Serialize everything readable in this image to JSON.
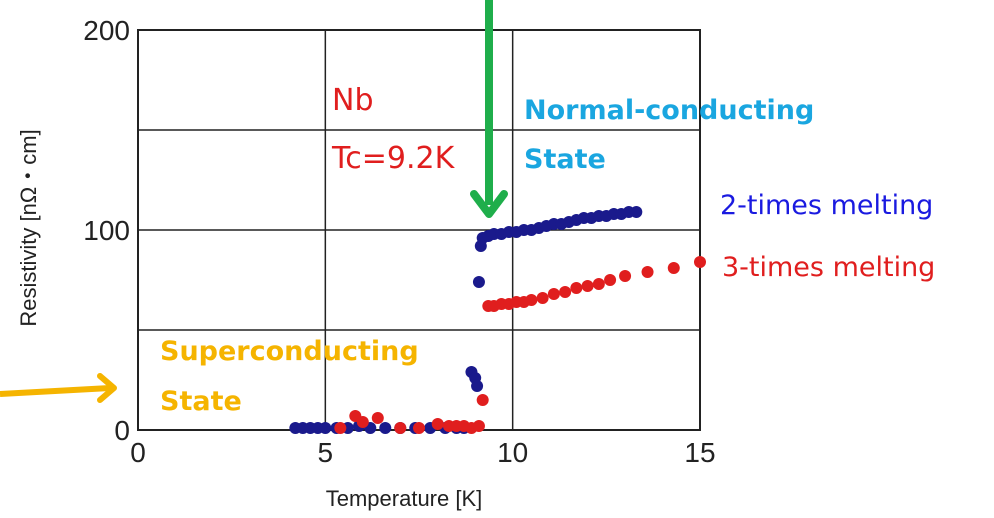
{
  "chart_data": {
    "type": "scatter",
    "xlabel": "Temperature [K]",
    "ylabel": "Resistivity [nΩ・cm]",
    "xlim": [
      0,
      15
    ],
    "ylim": [
      0,
      200
    ],
    "xticks": [
      "0",
      "5",
      "10",
      "15"
    ],
    "yticks": [
      "0",
      "100",
      "200"
    ],
    "grid": true,
    "series": [
      {
        "name": "2-times melting",
        "color": "#1a1a8c",
        "points": [
          [
            4.2,
            1
          ],
          [
            4.4,
            1
          ],
          [
            4.6,
            1
          ],
          [
            4.8,
            1
          ],
          [
            5.0,
            1
          ],
          [
            5.3,
            1
          ],
          [
            5.6,
            1
          ],
          [
            5.9,
            2
          ],
          [
            6.2,
            1
          ],
          [
            6.6,
            1
          ],
          [
            7.0,
            1
          ],
          [
            7.4,
            1
          ],
          [
            7.8,
            1
          ],
          [
            8.2,
            1
          ],
          [
            8.5,
            1
          ],
          [
            8.7,
            1
          ],
          [
            8.9,
            29
          ],
          [
            9.0,
            26
          ],
          [
            9.05,
            22
          ],
          [
            9.1,
            74
          ],
          [
            9.15,
            92
          ],
          [
            9.2,
            96
          ],
          [
            9.35,
            97
          ],
          [
            9.5,
            98
          ],
          [
            9.7,
            98
          ],
          [
            9.9,
            99
          ],
          [
            10.1,
            99
          ],
          [
            10.3,
            100
          ],
          [
            10.5,
            100
          ],
          [
            10.7,
            101
          ],
          [
            10.9,
            102
          ],
          [
            11.1,
            103
          ],
          [
            11.3,
            103
          ],
          [
            11.5,
            104
          ],
          [
            11.7,
            105
          ],
          [
            11.9,
            106
          ],
          [
            12.1,
            106
          ],
          [
            12.3,
            107
          ],
          [
            12.5,
            107
          ],
          [
            12.7,
            108
          ],
          [
            12.9,
            108
          ],
          [
            13.1,
            109
          ],
          [
            13.3,
            109
          ]
        ]
      },
      {
        "name": "3-times melting",
        "color": "#e01e1e",
        "points": [
          [
            5.4,
            1
          ],
          [
            5.8,
            7
          ],
          [
            6.0,
            4
          ],
          [
            6.4,
            6
          ],
          [
            7.0,
            1
          ],
          [
            7.5,
            1
          ],
          [
            8.0,
            3
          ],
          [
            8.3,
            2
          ],
          [
            8.5,
            2
          ],
          [
            8.7,
            2
          ],
          [
            8.9,
            1
          ],
          [
            9.1,
            2
          ],
          [
            9.2,
            15
          ],
          [
            9.35,
            62
          ],
          [
            9.5,
            62
          ],
          [
            9.7,
            63
          ],
          [
            9.9,
            63
          ],
          [
            10.1,
            64
          ],
          [
            10.3,
            64
          ],
          [
            10.5,
            65
          ],
          [
            10.8,
            66
          ],
          [
            11.1,
            68
          ],
          [
            11.4,
            69
          ],
          [
            11.7,
            71
          ],
          [
            12.0,
            72
          ],
          [
            12.3,
            73
          ],
          [
            12.6,
            75
          ],
          [
            13.0,
            77
          ],
          [
            13.6,
            79
          ],
          [
            14.3,
            81
          ],
          [
            15.0,
            84
          ]
        ]
      }
    ],
    "annotations": {
      "material": "Nb",
      "tc": "Tc=9.2K",
      "normal_1": "Normal-conducting",
      "normal_2": "State",
      "super_1": "Superconducting",
      "super_2": "State"
    }
  },
  "colors": {
    "normal_text": "#1aa6e0",
    "super_text": "#f5b400",
    "tc_text": "#e01e1e",
    "green_arrow": "#1fae4b",
    "orange_arrow": "#f5b400",
    "series_blue_text": "#1a1ae0",
    "series_red_text": "#e01e1e"
  }
}
